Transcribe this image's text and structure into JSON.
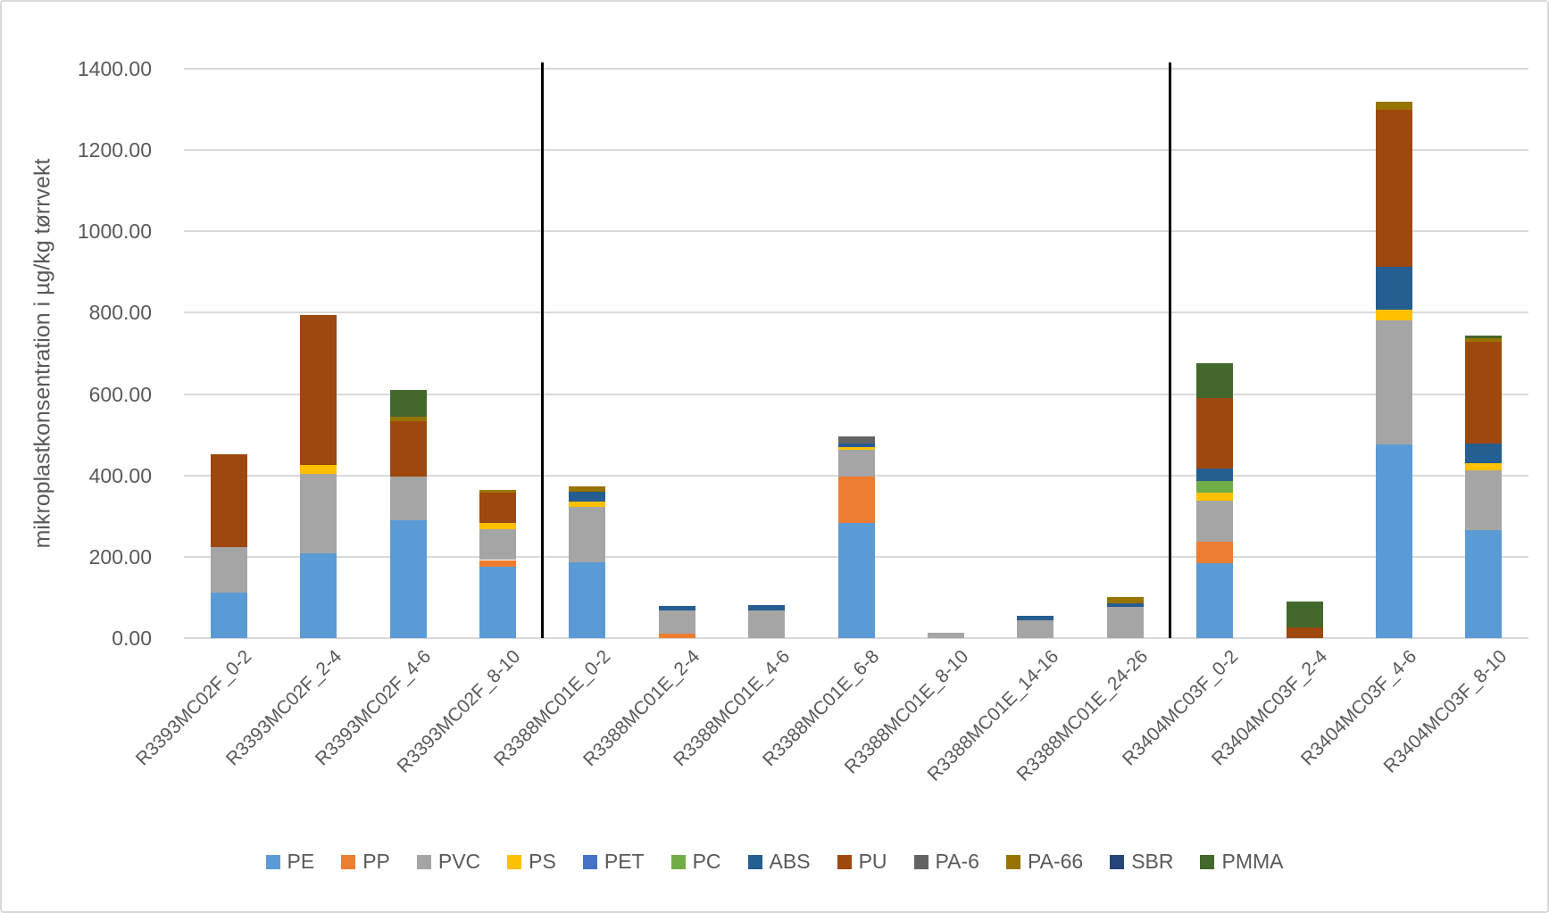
{
  "chart_data": {
    "type": "bar",
    "stacked": true,
    "title": "",
    "xlabel": "",
    "ylabel": "mikroplastkonsentration i µg/kg tørrvekt",
    "ylim": [
      0,
      1400
    ],
    "y_tick_step": 200,
    "y_tick_labels": [
      "0.00",
      "200.00",
      "400.00",
      "600.00",
      "800.00",
      "1000.00",
      "1200.00",
      "1400.00"
    ],
    "grid": true,
    "legend_position": "bottom",
    "categories": [
      "R3393MC02F_0-2",
      "R3393MC02F_2-4",
      "R3393MC02F_4-6",
      "R3393MC02F_8-10",
      "R3388MC01E_0-2",
      "R3388MC01E_2-4",
      "R3388MC01E_4-6",
      "R3388MC01E_6-8",
      "R3388MC01E_8-10",
      "R3388MC01E_14-16",
      "R3388MC01E_24-26",
      "R3404MC03F_0-2",
      "R3404MC03F_2-4",
      "R3404MC03F_4-6",
      "R3404MC03F_8-10"
    ],
    "series": [
      {
        "name": "PE",
        "color": "#5B9BD5",
        "values": [
          112,
          208,
          289,
          175,
          187,
          0,
          0,
          284,
          0,
          0,
          0,
          184,
          0,
          477,
          266
        ]
      },
      {
        "name": "PP",
        "color": "#ED7D31",
        "values": [
          0,
          0,
          0,
          17,
          0,
          10,
          0,
          113,
          0,
          0,
          0,
          53,
          0,
          0,
          0
        ]
      },
      {
        "name": "PVC",
        "color": "#A5A5A5",
        "values": [
          112,
          195,
          109,
          75,
          135,
          58,
          69,
          65,
          14,
          44,
          77,
          102,
          0,
          305,
          147
        ]
      },
      {
        "name": "PS",
        "color": "#FFC000",
        "values": [
          0,
          22,
          0,
          15,
          14,
          0,
          0,
          8,
          0,
          0,
          0,
          19,
          0,
          26,
          17
        ]
      },
      {
        "name": "PET",
        "color": "#4472C4",
        "values": [
          0,
          0,
          0,
          0,
          0,
          0,
          0,
          0,
          0,
          0,
          0,
          0,
          0,
          0,
          0
        ]
      },
      {
        "name": "PC",
        "color": "#70AD47",
        "values": [
          0,
          0,
          0,
          0,
          0,
          0,
          0,
          0,
          0,
          0,
          0,
          28,
          0,
          0,
          0
        ]
      },
      {
        "name": "ABS",
        "color": "#255E91",
        "values": [
          0,
          0,
          0,
          0,
          23,
          11,
          13,
          9,
          0,
          11,
          9,
          30,
          0,
          105,
          49
        ]
      },
      {
        "name": "PU",
        "color": "#9E480E",
        "values": [
          227,
          370,
          135,
          75,
          0,
          0,
          0,
          0,
          0,
          0,
          0,
          175,
          26,
          387,
          249
        ]
      },
      {
        "name": "PA-6",
        "color": "#636363",
        "values": [
          0,
          0,
          0,
          0,
          0,
          0,
          0,
          16,
          0,
          0,
          0,
          0,
          0,
          0,
          0
        ]
      },
      {
        "name": "PA-66",
        "color": "#997300",
        "values": [
          0,
          0,
          11,
          8,
          14,
          0,
          0,
          0,
          0,
          0,
          15,
          0,
          0,
          18,
          9
        ]
      },
      {
        "name": "SBR",
        "color": "#264478",
        "values": [
          0,
          0,
          0,
          0,
          0,
          0,
          0,
          0,
          0,
          0,
          0,
          0,
          0,
          0,
          0
        ]
      },
      {
        "name": "PMMA",
        "color": "#43682B",
        "values": [
          0,
          0,
          65,
          0,
          0,
          0,
          0,
          0,
          0,
          0,
          0,
          85,
          63,
          0,
          7
        ]
      }
    ],
    "annotations": {
      "group_dividers_after_categories": [
        "R3393MC02F_8-10",
        "R3388MC01E_24-26"
      ],
      "divider_color": "#000000"
    }
  }
}
